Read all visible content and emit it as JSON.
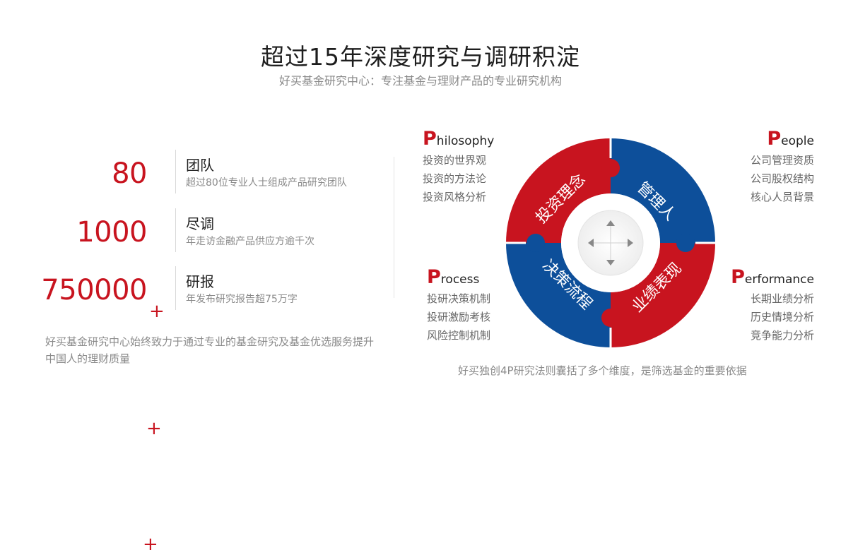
{
  "header": {
    "title": "超过15年深度研究与调研积淀",
    "subtitle": "好买基金研究中心：专注基金与理财产品的专业研究机构"
  },
  "stats": [
    {
      "number": "80",
      "plus": "+",
      "label": "团队",
      "desc": "超过80位专业人士组成产品研究团队"
    },
    {
      "number": "1000",
      "plus": "+",
      "label": "尽调",
      "desc": "年走访金融产品供应方逾千次"
    },
    {
      "number": "750000",
      "plus": "+",
      "label": "研报",
      "desc": "年发布研究报告超75万字"
    }
  ],
  "intro": "好买基金研究中心始终致力于通过专业的基金研究及基金优选服务提升中国人的理财质量",
  "quadrants": {
    "philosophy": {
      "big": "P",
      "rest": "hilosophy",
      "items": [
        "投资的世界观",
        "投资的方法论",
        "投资风格分析"
      ],
      "wheel_label": "投资理念"
    },
    "people": {
      "big": "P",
      "rest": "eople",
      "items": [
        "公司管理资质",
        "公司股权结构",
        "核心人员背景"
      ],
      "wheel_label": "管理人"
    },
    "process": {
      "big": "P",
      "rest": "rocess",
      "items": [
        "投研决策机制",
        "投研激励考核",
        "风险控制机制"
      ],
      "wheel_label": "决策流程"
    },
    "performance": {
      "big": "P",
      "rest": "erformance",
      "items": [
        "长期业绩分析",
        "历史情境分析",
        "竞争能力分析"
      ],
      "wheel_label": "业绩表现"
    }
  },
  "footnote": "好买独创4P研究法则囊括了多个维度，是筛选基金的重要依据",
  "colors": {
    "red": "#c8141f",
    "blue": "#0d4f9a",
    "grey": "#8a8a8a"
  },
  "icons": {
    "center": "four-way-arrows-icon"
  }
}
